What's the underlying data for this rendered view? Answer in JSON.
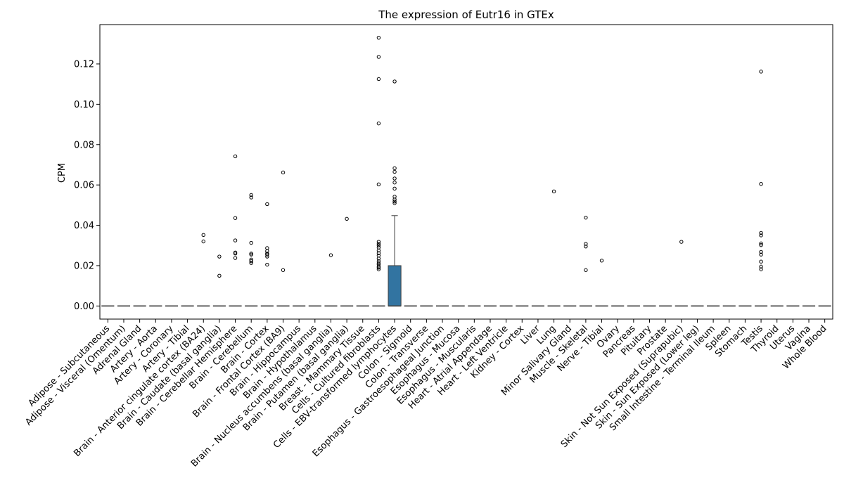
{
  "chart_data": {
    "type": "box",
    "title": "The expression of Eutr16 in GTEx",
    "xlabel": "",
    "ylabel": "CPM",
    "ylim": [
      -0.0065,
      0.1395
    ],
    "yticks": [
      0.0,
      0.02,
      0.04,
      0.06,
      0.08,
      0.1,
      0.12
    ],
    "ytick_labels": [
      "0.00",
      "0.02",
      "0.04",
      "0.06",
      "0.08",
      "0.10",
      "0.12"
    ],
    "grid": false,
    "box_color": "#3274a1",
    "categories": [
      "Adipose - Subcutaneous",
      "Adipose - Visceral (Omentum)",
      "Adrenal Gland",
      "Artery - Aorta",
      "Artery - Coronary",
      "Artery - Tibial",
      "Brain - Anterior cingulate cortex (BA24)",
      "Brain - Caudate (basal ganglia)",
      "Brain - Cerebellar Hemisphere",
      "Brain - Cerebellum",
      "Brain - Cortex",
      "Brain - Frontal Cortex (BA9)",
      "Brain - Hippocampus",
      "Brain - Hypothalamus",
      "Brain - Nucleus accumbens (basal ganglia)",
      "Brain - Putamen (basal ganglia)",
      "Breast - Mammary Tissue",
      "Cells - Cultured fibroblasts",
      "Cells - EBV-transformed lymphocytes",
      "Colon - Sigmoid",
      "Colon - Transverse",
      "Esophagus - Gastroesophageal Junction",
      "Esophagus - Mucosa",
      "Esophagus - Muscularis",
      "Heart - Atrial Appendage",
      "Heart - Left Ventricle",
      "Kidney - Cortex",
      "Liver",
      "Lung",
      "Minor Salivary Gland",
      "Muscle - Skeletal",
      "Nerve - Tibial",
      "Ovary",
      "Pancreas",
      "Pituitary",
      "Prostate",
      "Skin - Not Sun Exposed (Suprapubic)",
      "Skin - Sun Exposed (Lower leg)",
      "Small Intestine - Terminal Ileum",
      "Spleen",
      "Stomach",
      "Testis",
      "Thyroid",
      "Uterus",
      "Vagina",
      "Whole Blood"
    ],
    "boxes": [
      {
        "q1": 0,
        "median": 0,
        "q3": 0,
        "whisker_low": 0,
        "whisker_high": 0,
        "outliers": []
      },
      {
        "q1": 0,
        "median": 0,
        "q3": 0,
        "whisker_low": 0,
        "whisker_high": 0,
        "outliers": []
      },
      {
        "q1": 0,
        "median": 0,
        "q3": 0,
        "whisker_low": 0,
        "whisker_high": 0,
        "outliers": []
      },
      {
        "q1": 0,
        "median": 0,
        "q3": 0,
        "whisker_low": 0,
        "whisker_high": 0,
        "outliers": []
      },
      {
        "q1": 0,
        "median": 0,
        "q3": 0,
        "whisker_low": 0,
        "whisker_high": 0,
        "outliers": []
      },
      {
        "q1": 0,
        "median": 0,
        "q3": 0,
        "whisker_low": 0,
        "whisker_high": 0,
        "outliers": []
      },
      {
        "q1": 0,
        "median": 0,
        "q3": 0,
        "whisker_low": 0,
        "whisker_high": 0,
        "outliers": [
          0.0352,
          0.032
        ]
      },
      {
        "q1": 0,
        "median": 0,
        "q3": 0,
        "whisker_low": 0,
        "whisker_high": 0,
        "outliers": [
          0.0245,
          0.015
        ]
      },
      {
        "q1": 0,
        "median": 0,
        "q3": 0,
        "whisker_low": 0,
        "whisker_high": 0,
        "outliers": [
          0.0742,
          0.0436,
          0.0325,
          0.0265,
          0.026,
          0.0238
        ]
      },
      {
        "q1": 0,
        "median": 0,
        "q3": 0,
        "whisker_low": 0,
        "whisker_high": 0,
        "outliers": [
          0.055,
          0.0538,
          0.0313,
          0.026,
          0.0255,
          0.023,
          0.0222,
          0.0213
        ]
      },
      {
        "q1": 0,
        "median": 0,
        "q3": 0,
        "whisker_low": 0,
        "whisker_high": 0,
        "outliers": [
          0.0505,
          0.0287,
          0.0272,
          0.026,
          0.0255,
          0.0245,
          0.0205
        ]
      },
      {
        "q1": 0,
        "median": 0,
        "q3": 0,
        "whisker_low": 0,
        "whisker_high": 0,
        "outliers": [
          0.0662,
          0.0178
        ]
      },
      {
        "q1": 0,
        "median": 0,
        "q3": 0,
        "whisker_low": 0,
        "whisker_high": 0,
        "outliers": []
      },
      {
        "q1": 0,
        "median": 0,
        "q3": 0,
        "whisker_low": 0,
        "whisker_high": 0,
        "outliers": []
      },
      {
        "q1": 0,
        "median": 0,
        "q3": 0,
        "whisker_low": 0,
        "whisker_high": 0,
        "outliers": [
          0.0252
        ]
      },
      {
        "q1": 0,
        "median": 0,
        "q3": 0,
        "whisker_low": 0,
        "whisker_high": 0,
        "outliers": [
          0.0432
        ]
      },
      {
        "q1": 0,
        "median": 0,
        "q3": 0,
        "whisker_low": 0,
        "whisker_high": 0,
        "outliers": []
      },
      {
        "q1": 0,
        "median": 0,
        "q3": 0,
        "whisker_low": 0,
        "whisker_high": 0,
        "outliers": [
          0.133,
          0.1235,
          0.1125,
          0.0905,
          0.0603,
          0.0318,
          0.0308,
          0.03,
          0.029,
          0.0275,
          0.0262,
          0.025,
          0.0235,
          0.0222,
          0.0212,
          0.0205,
          0.0195,
          0.019,
          0.0182
        ]
      },
      {
        "q1": 0,
        "median": 0,
        "q3": 0.02,
        "whisker_low": 0,
        "whisker_high": 0.0448,
        "outliers": [
          0.1113,
          0.0683,
          0.0665,
          0.0632,
          0.0612,
          0.0582,
          0.0542,
          0.0528,
          0.0518,
          0.051
        ]
      },
      {
        "q1": 0,
        "median": 0,
        "q3": 0,
        "whisker_low": 0,
        "whisker_high": 0,
        "outliers": []
      },
      {
        "q1": 0,
        "median": 0,
        "q3": 0,
        "whisker_low": 0,
        "whisker_high": 0,
        "outliers": []
      },
      {
        "q1": 0,
        "median": 0,
        "q3": 0,
        "whisker_low": 0,
        "whisker_high": 0,
        "outliers": []
      },
      {
        "q1": 0,
        "median": 0,
        "q3": 0,
        "whisker_low": 0,
        "whisker_high": 0,
        "outliers": []
      },
      {
        "q1": 0,
        "median": 0,
        "q3": 0,
        "whisker_low": 0,
        "whisker_high": 0,
        "outliers": []
      },
      {
        "q1": 0,
        "median": 0,
        "q3": 0,
        "whisker_low": 0,
        "whisker_high": 0,
        "outliers": []
      },
      {
        "q1": 0,
        "median": 0,
        "q3": 0,
        "whisker_low": 0,
        "whisker_high": 0,
        "outliers": []
      },
      {
        "q1": 0,
        "median": 0,
        "q3": 0,
        "whisker_low": 0,
        "whisker_high": 0,
        "outliers": []
      },
      {
        "q1": 0,
        "median": 0,
        "q3": 0,
        "whisker_low": 0,
        "whisker_high": 0,
        "outliers": []
      },
      {
        "q1": 0,
        "median": 0,
        "q3": 0,
        "whisker_low": 0,
        "whisker_high": 0,
        "outliers": [
          0.0568
        ]
      },
      {
        "q1": 0,
        "median": 0,
        "q3": 0,
        "whisker_low": 0,
        "whisker_high": 0,
        "outliers": []
      },
      {
        "q1": 0,
        "median": 0,
        "q3": 0,
        "whisker_low": 0,
        "whisker_high": 0,
        "outliers": [
          0.0438,
          0.0308,
          0.0295,
          0.0178
        ]
      },
      {
        "q1": 0,
        "median": 0,
        "q3": 0,
        "whisker_low": 0,
        "whisker_high": 0,
        "outliers": [
          0.0225
        ]
      },
      {
        "q1": 0,
        "median": 0,
        "q3": 0,
        "whisker_low": 0,
        "whisker_high": 0,
        "outliers": []
      },
      {
        "q1": 0,
        "median": 0,
        "q3": 0,
        "whisker_low": 0,
        "whisker_high": 0,
        "outliers": []
      },
      {
        "q1": 0,
        "median": 0,
        "q3": 0,
        "whisker_low": 0,
        "whisker_high": 0,
        "outliers": []
      },
      {
        "q1": 0,
        "median": 0,
        "q3": 0,
        "whisker_low": 0,
        "whisker_high": 0,
        "outliers": []
      },
      {
        "q1": 0,
        "median": 0,
        "q3": 0,
        "whisker_low": 0,
        "whisker_high": 0,
        "outliers": [
          0.0318
        ]
      },
      {
        "q1": 0,
        "median": 0,
        "q3": 0,
        "whisker_low": 0,
        "whisker_high": 0,
        "outliers": []
      },
      {
        "q1": 0,
        "median": 0,
        "q3": 0,
        "whisker_low": 0,
        "whisker_high": 0,
        "outliers": []
      },
      {
        "q1": 0,
        "median": 0,
        "q3": 0,
        "whisker_low": 0,
        "whisker_high": 0,
        "outliers": []
      },
      {
        "q1": 0,
        "median": 0,
        "q3": 0,
        "whisker_low": 0,
        "whisker_high": 0,
        "outliers": []
      },
      {
        "q1": 0,
        "median": 0,
        "q3": 0,
        "whisker_low": 0,
        "whisker_high": 0,
        "outliers": [
          0.1162,
          0.0605,
          0.0362,
          0.035,
          0.031,
          0.0302,
          0.0268,
          0.0255,
          0.022,
          0.0195,
          0.0182
        ]
      },
      {
        "q1": 0,
        "median": 0,
        "q3": 0,
        "whisker_low": 0,
        "whisker_high": 0,
        "outliers": []
      },
      {
        "q1": 0,
        "median": 0,
        "q3": 0,
        "whisker_low": 0,
        "whisker_high": 0,
        "outliers": []
      },
      {
        "q1": 0,
        "median": 0,
        "q3": 0,
        "whisker_low": 0,
        "whisker_high": 0,
        "outliers": []
      },
      {
        "q1": 0,
        "median": 0,
        "q3": 0,
        "whisker_low": 0,
        "whisker_high": 0,
        "outliers": []
      }
    ]
  }
}
